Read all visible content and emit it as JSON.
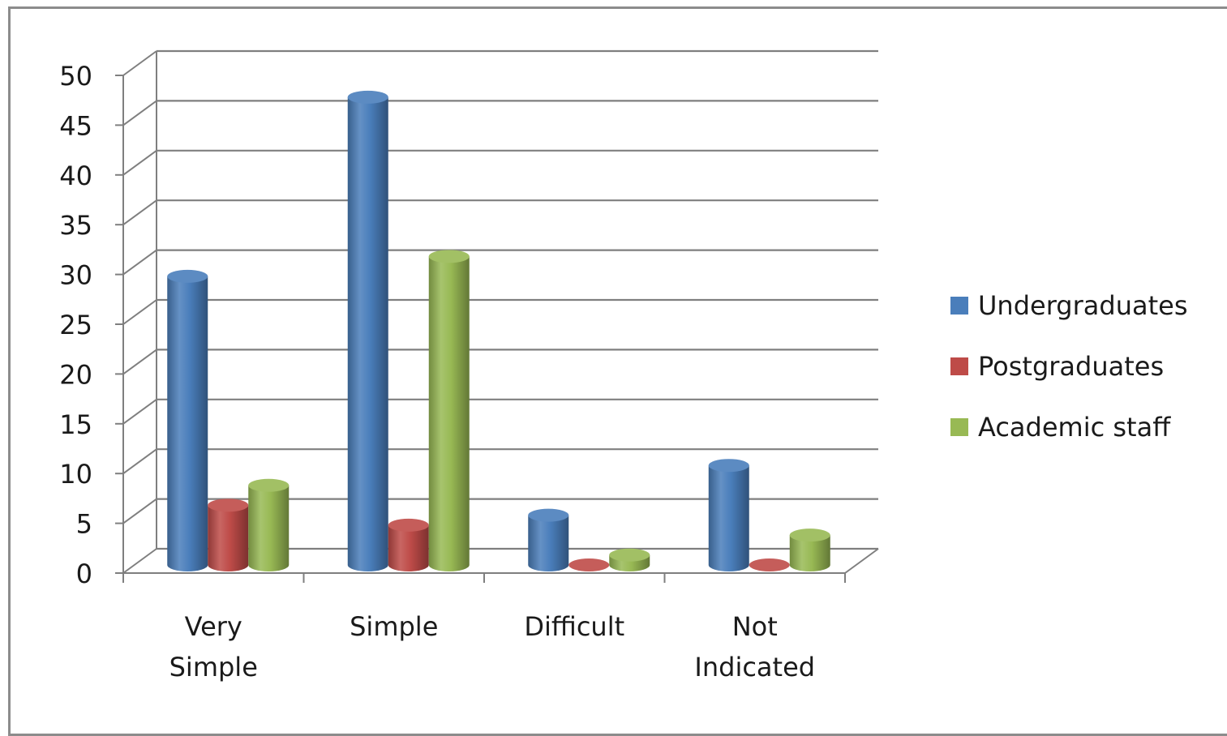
{
  "chart_data": {
    "type": "bar",
    "title": "",
    "xlabel": "",
    "ylabel": "",
    "ylim": [
      0,
      50
    ],
    "yticks": [
      0,
      5,
      10,
      15,
      20,
      25,
      30,
      35,
      40,
      45,
      50
    ],
    "grid": true,
    "three_d": true,
    "legend_position": "right",
    "categories": [
      [
        "Very",
        "Simple"
      ],
      [
        "Simple"
      ],
      [
        "Difficult"
      ],
      [
        "Not",
        "Indicated"
      ]
    ],
    "series": [
      {
        "name": "Undergraduates",
        "color": "#4a7ebb",
        "values": [
          29,
          47,
          5,
          10
        ]
      },
      {
        "name": "Postgraduates",
        "color": "#be4b48",
        "values": [
          6,
          4,
          0,
          0
        ]
      },
      {
        "name": "Academic staff",
        "color": "#98b954",
        "values": [
          8,
          31,
          1,
          3
        ]
      }
    ]
  }
}
